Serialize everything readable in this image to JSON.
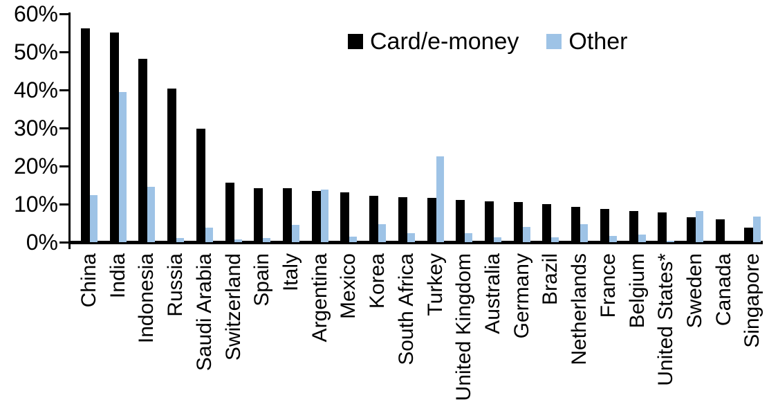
{
  "chart_data": {
    "type": "bar",
    "title": "",
    "categories": [
      "China",
      "India",
      "Indonesia",
      "Russia",
      "Saudi Arabia",
      "Switzerland",
      "Spain",
      "Italy",
      "Argentina",
      "Mexico",
      "Korea",
      "South Africa",
      "Turkey",
      "United Kingdom",
      "Australia",
      "Germany",
      "Brazil",
      "Netherlands",
      "France",
      "Belgium",
      "United States*",
      "Sweden",
      "Canada",
      "Singapore"
    ],
    "series": [
      {
        "name": "Card/e-money",
        "color": "#000000",
        "values": [
          56.2,
          55.0,
          48.2,
          40.3,
          29.8,
          15.6,
          14.2,
          14.1,
          13.5,
          13.0,
          12.2,
          11.8,
          11.6,
          11.1,
          10.8,
          10.6,
          10.0,
          9.3,
          8.7,
          8.2,
          7.9,
          6.6,
          6.0,
          3.9
        ]
      },
      {
        "name": "Other",
        "color": "#9EC3E6",
        "values": [
          12.3,
          39.5,
          14.5,
          1.0,
          3.8,
          0.7,
          1.0,
          4.6,
          13.8,
          1.4,
          4.7,
          2.4,
          22.5,
          2.3,
          1.2,
          4.0,
          1.2,
          4.8,
          1.6,
          2.0,
          0.3,
          8.1,
          0.0,
          6.7
        ]
      }
    ],
    "ylim": [
      0,
      60
    ],
    "ytick_step": 10,
    "ytick_labels": [
      "0%",
      "10%",
      "20%",
      "30%",
      "40%",
      "50%",
      "60%"
    ],
    "xlabel": "",
    "ylabel": "",
    "grid": false,
    "legend_position": "top-center"
  }
}
